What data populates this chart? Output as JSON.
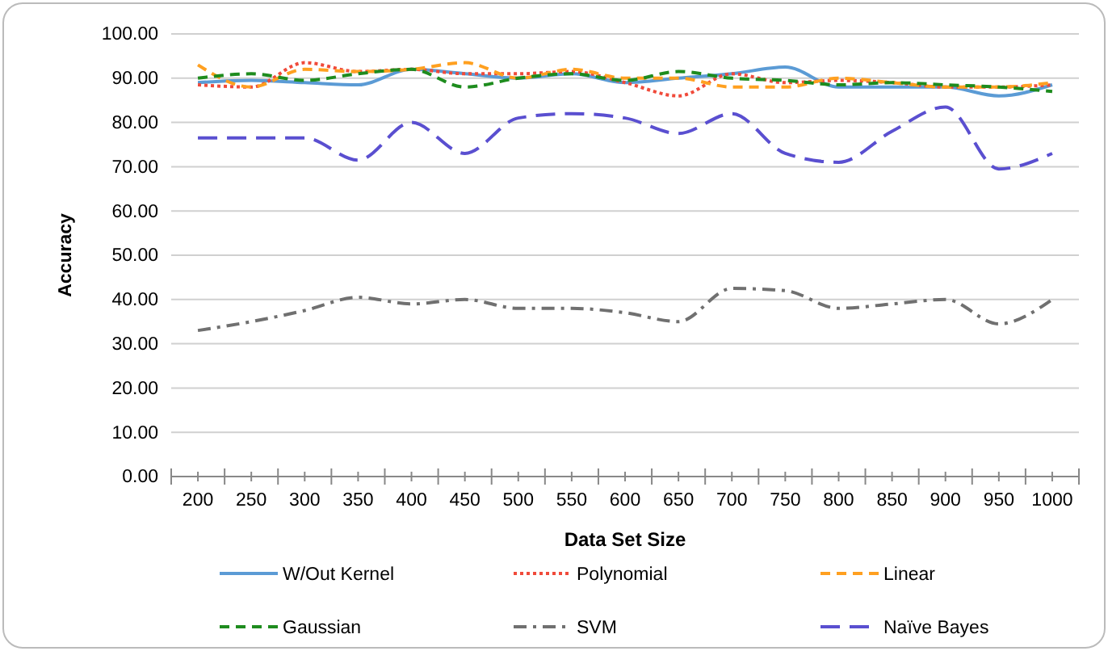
{
  "chart_data": {
    "type": "line",
    "xlabel": "Data Set Size",
    "ylabel": "Accuracy",
    "categories": [
      "200",
      "250",
      "300",
      "350",
      "400",
      "450",
      "500",
      "550",
      "600",
      "650",
      "700",
      "750",
      "800",
      "850",
      "900",
      "950",
      "1000"
    ],
    "ylim": [
      0,
      100
    ],
    "yticks": [
      {
        "value": 0,
        "label": "0.00"
      },
      {
        "value": 10,
        "label": "10.00"
      },
      {
        "value": 20,
        "label": "20.00"
      },
      {
        "value": 30,
        "label": "30.00"
      },
      {
        "value": 40,
        "label": "40.00"
      },
      {
        "value": 50,
        "label": "50.00"
      },
      {
        "value": 60,
        "label": "60.00"
      },
      {
        "value": 70,
        "label": "70.00"
      },
      {
        "value": 80,
        "label": "80.00"
      },
      {
        "value": 90,
        "label": "90.00"
      },
      {
        "value": 100,
        "label": "100.00"
      }
    ],
    "grid": "y",
    "legend": "bottom",
    "series": [
      {
        "name": "W/Out Kernel",
        "color": "#5b9bd5",
        "line_style": "solid",
        "values": [
          89,
          89.5,
          89,
          88.5,
          92,
          91,
          90,
          91,
          89,
          90,
          91,
          92.5,
          88,
          88,
          88,
          86,
          88.5
        ]
      },
      {
        "name": "Polynomial",
        "color": "#f04a3a",
        "line_style": "dotted",
        "values": [
          88.5,
          88,
          93.5,
          91.5,
          92,
          91,
          91,
          91.5,
          89,
          86,
          91,
          89,
          89.5,
          89,
          88,
          88,
          88.5
        ]
      },
      {
        "name": "Linear",
        "color": "#ffa020",
        "line_style": "dashed",
        "values": [
          93,
          88,
          92,
          91.5,
          92,
          93.5,
          90,
          92,
          90,
          90,
          88,
          88,
          90,
          89,
          88,
          88,
          89
        ]
      },
      {
        "name": "Gaussian",
        "color": "#1e8c1e",
        "line_style": "dashed",
        "values": [
          90,
          91,
          89.5,
          91,
          92,
          88,
          90,
          91,
          89.5,
          91.5,
          90,
          89.5,
          88.5,
          89,
          88.5,
          88,
          87
        ]
      },
      {
        "name": "SVM",
        "color": "#707070",
        "line_style": "dashdot",
        "values": [
          33,
          35,
          37.5,
          40.5,
          39,
          40,
          38,
          38,
          37,
          35,
          42.5,
          42,
          38,
          39,
          40,
          34.5,
          40
        ]
      },
      {
        "name": "Naïve Bayes",
        "color": "#5a4fd0",
        "line_style": "longdash",
        "values": [
          76.5,
          76.5,
          76.5,
          71.5,
          80,
          73,
          81,
          82,
          81,
          77.5,
          82,
          73,
          71,
          78,
          83.5,
          69.5,
          73
        ]
      }
    ]
  }
}
